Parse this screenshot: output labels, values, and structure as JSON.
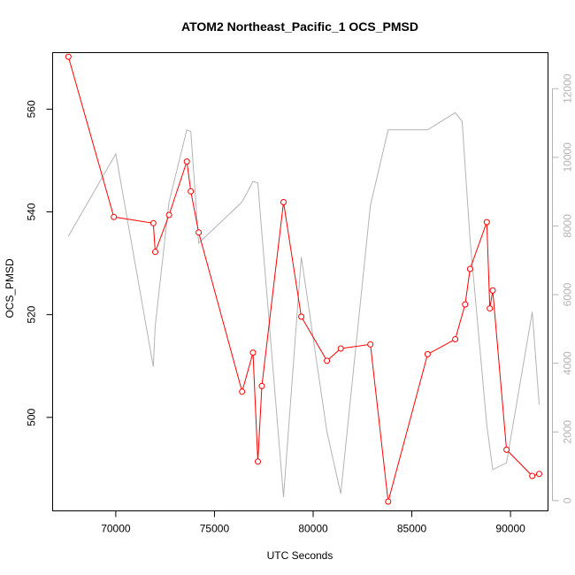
{
  "chart_data": {
    "type": "line",
    "title": "ATOM2 Northeast_Pacific_1 OCS_PMSD",
    "xlabel": "UTC Seconds",
    "ylabel": "OCS_PMSD",
    "xlim": [
      66800,
      91900
    ],
    "ylim": [
      481.8,
      571.0
    ],
    "y2lim": [
      -300,
      13050
    ],
    "x_ticks": [
      70000,
      75000,
      80000,
      85000,
      90000
    ],
    "y_ticks": [
      500,
      520,
      540,
      560
    ],
    "y2_ticks": [
      0,
      2000,
      4000,
      6000,
      8000,
      10000,
      12000
    ],
    "grid": false,
    "legend": "none",
    "series": [
      {
        "axis": "left",
        "color": "#ff0000",
        "style": "line+points",
        "x": [
          67600,
          69900,
          71900,
          72000,
          72700,
          73600,
          73800,
          74200,
          76400,
          76950,
          77200,
          77400,
          78500,
          79400,
          80700,
          81400,
          82900,
          83800,
          85800,
          87200,
          87700,
          87950,
          88800,
          88950,
          89100,
          89800,
          91100,
          91450
        ],
        "y": [
          570.2,
          539.0,
          537.8,
          532.2,
          539.4,
          549.8,
          544.0,
          536.0,
          505.0,
          512.6,
          491.4,
          506.1,
          541.9,
          519.6,
          511.0,
          513.4,
          514.2,
          483.6,
          512.3,
          515.2,
          522.0,
          528.9,
          538.0,
          521.2,
          524.7,
          493.7,
          488.6,
          489.0
        ]
      },
      {
        "axis": "right",
        "color": "#b3b3b3",
        "style": "line",
        "x": [
          67600,
          70000,
          71900,
          72000,
          72700,
          73600,
          73800,
          74200,
          76400,
          76950,
          77200,
          77400,
          78500,
          79400,
          80700,
          81400,
          82900,
          83800,
          85800,
          87200,
          87550,
          87950,
          88800,
          89100,
          89800,
          91100,
          91450
        ],
        "y": [
          7700,
          10100,
          3900,
          5100,
          8700,
          10800,
          10750,
          7500,
          8700,
          9300,
          9250,
          7800,
          100,
          7100,
          2000,
          200,
          8600,
          10800,
          10800,
          11300,
          11050,
          7600,
          2200,
          900,
          1100,
          5500,
          2800
        ]
      }
    ]
  }
}
